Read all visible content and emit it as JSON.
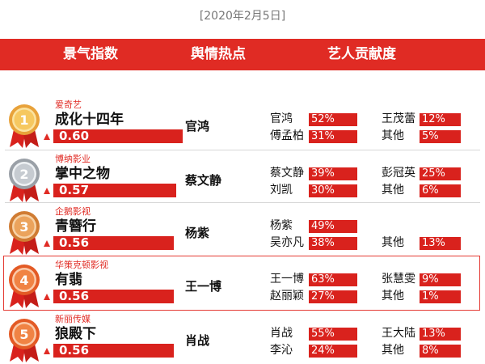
{
  "date": "[2020年2月5日]",
  "header": {
    "col1": "景气指数",
    "col2": "舆情热点",
    "col3": "艺人贡献度"
  },
  "colors": {
    "accent": "#e02b24",
    "gold": "#e8a23a",
    "silver": "#a9adb3",
    "bronze": "#d8893f",
    "orange": "#e9652e"
  },
  "chart_data": {
    "type": "table",
    "columns": [
      "景气指数",
      "舆情热点",
      "艺人贡献度"
    ],
    "rows": [
      {
        "rank": "1",
        "medal": "gold",
        "company": "爱奇艺",
        "drama": "成化十四年",
        "index": 0.6,
        "index_label": "0.60",
        "trend": "up",
        "hotspot": "官鸿",
        "actors": [
          {
            "name": "官鸿",
            "share": 52,
            "label": "52%"
          },
          {
            "name": "王茂蕾",
            "share": 12,
            "label": "12%"
          },
          {
            "name": "傅孟柏",
            "share": 31,
            "label": "31%"
          },
          {
            "name": "其他",
            "share": 5,
            "label": "5%"
          }
        ]
      },
      {
        "rank": "2",
        "medal": "silver",
        "company": "博纳影业",
        "drama": "掌中之物",
        "index": 0.57,
        "index_label": "0.57",
        "trend": "up",
        "hotspot": "蔡文静",
        "actors": [
          {
            "name": "蔡文静",
            "share": 39,
            "label": "39%"
          },
          {
            "name": "彭冠英",
            "share": 25,
            "label": "25%"
          },
          {
            "name": "刘凯",
            "share": 30,
            "label": "30%"
          },
          {
            "name": "其他",
            "share": 6,
            "label": "6%"
          }
        ]
      },
      {
        "rank": "3",
        "medal": "bronze",
        "company": "企鹅影视",
        "drama": "青簪行",
        "index": 0.56,
        "index_label": "0.56",
        "trend": "up",
        "hotspot": "杨紫",
        "actors": [
          {
            "name": "杨紫",
            "share": 49,
            "label": "49%"
          },
          {
            "name": "",
            "share": null,
            "label": ""
          },
          {
            "name": "吴亦凡",
            "share": 38,
            "label": "38%"
          },
          {
            "name": "其他",
            "share": 13,
            "label": "13%"
          }
        ]
      },
      {
        "rank": "4",
        "medal": "orange",
        "company": "华策克顿影视",
        "drama": "有翡",
        "index": 0.56,
        "index_label": "0.56",
        "trend": "up",
        "hotspot": "王一博",
        "actors": [
          {
            "name": "王一博",
            "share": 63,
            "label": "63%"
          },
          {
            "name": "张慧雯",
            "share": 9,
            "label": "9%"
          },
          {
            "name": "赵丽颖",
            "share": 27,
            "label": "27%"
          },
          {
            "name": "其他",
            "share": 1,
            "label": "1%"
          }
        ]
      },
      {
        "rank": "5",
        "medal": "orange",
        "company": "新丽传媒",
        "drama": "狼殿下",
        "index": 0.56,
        "index_label": "0.56",
        "trend": "up",
        "hotspot": "肖战",
        "actors": [
          {
            "name": "肖战",
            "share": 55,
            "label": "55%"
          },
          {
            "name": "王大陆",
            "share": 13,
            "label": "13%"
          },
          {
            "name": "李沁",
            "share": 24,
            "label": "24%"
          },
          {
            "name": "其他",
            "share": 8,
            "label": "8%"
          }
        ]
      }
    ]
  }
}
